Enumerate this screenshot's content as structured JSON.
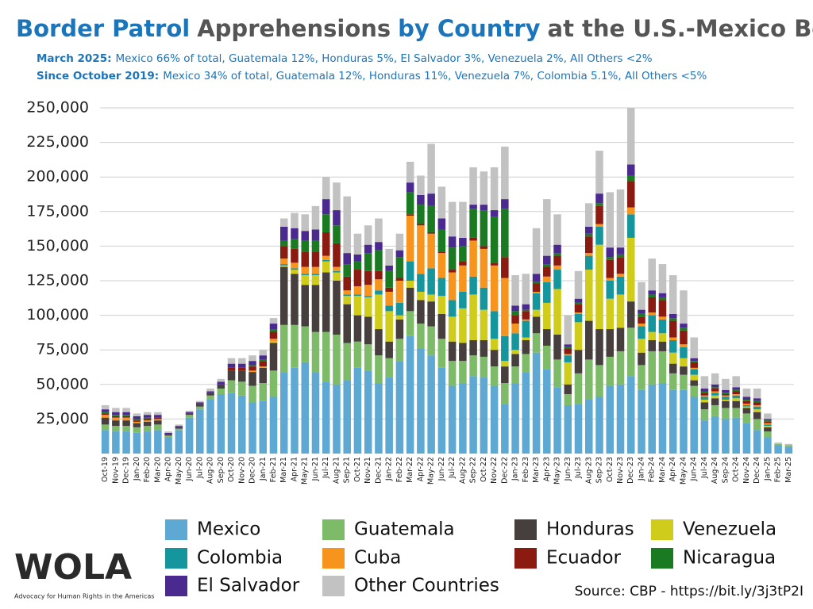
{
  "chart_data": {
    "type": "stacked_bar",
    "title_parts": [
      {
        "text": "Border Patrol",
        "color": "#1b75bb"
      },
      {
        "text": "Apprehensions",
        "color": "#555555"
      },
      {
        "text": "by Country",
        "color": "#1b75bb"
      },
      {
        "text": "at the U.S.-Mexico Border",
        "color": "#555555"
      }
    ],
    "subtitle": [
      {
        "label": "March 2025:",
        "text": "Mexico 66% of total, Guatemala 12%, Honduras 5%, El Salvador 3%, Venezuela 2%, All Others <2%"
      },
      {
        "label": "Since October 2019:",
        "text": "Mexico 34% of total, Guatemala 12%, Honduras 11%, Venezuela 7%, Colombia 5.1%, All Others <5%"
      }
    ],
    "categories": [
      "Oct-19",
      "Nov-19",
      "Dec-19",
      "Jan-20",
      "Feb-20",
      "Mar-20",
      "Apr-20",
      "May-20",
      "Jun-20",
      "Jul-20",
      "Aug-20",
      "Sep-20",
      "Oct-20",
      "Nov-20",
      "Dec-20",
      "Jan-21",
      "Feb-21",
      "Mar-21",
      "Apr-21",
      "May-21",
      "Jun-21",
      "Jul-21",
      "Aug-21",
      "Sep-21",
      "Oct-21",
      "Nov-21",
      "Dec-21",
      "Jan-22",
      "Feb-22",
      "Mar-22",
      "Apr-22",
      "May-22",
      "Jun-22",
      "Jul-22",
      "Aug-22",
      "Sep-22",
      "Oct-22",
      "Nov-22",
      "Dec-22",
      "Jan-23",
      "Feb-23",
      "Mar-23",
      "Apr-23",
      "May-23",
      "Jun-23",
      "Jul-23",
      "Aug-23",
      "Sep-23",
      "Oct-23",
      "Nov-23",
      "Dec-23",
      "Jan-24",
      "Feb-24",
      "Mar-24",
      "Apr-24",
      "May-24",
      "Jun-24",
      "Jul-24",
      "Aug-24",
      "Sep-24",
      "Oct-24",
      "Nov-24",
      "Dec-24",
      "Jan-25",
      "Feb-25",
      "Mar-25"
    ],
    "series": [
      {
        "name": "Mexico",
        "color": "#5ea9d3",
        "values": [
          17000,
          16000,
          16000,
          15000,
          16000,
          17000,
          12000,
          17000,
          26000,
          32000,
          39000,
          43000,
          44000,
          42000,
          37000,
          38000,
          41000,
          59000,
          62000,
          66000,
          59000,
          52000,
          50000,
          53000,
          62000,
          60000,
          51000,
          55000,
          67000,
          85000,
          76000,
          71000,
          62000,
          49000,
          51000,
          56000,
          55000,
          49000,
          36000,
          51000,
          59000,
          73000,
          61000,
          48000,
          35000,
          36000,
          39000,
          41000,
          49000,
          50000,
          56000,
          46000,
          50000,
          51000,
          46000,
          46000,
          41000,
          24000,
          27000,
          25000,
          26000,
          22000,
          17000,
          12000,
          6000,
          5000
        ]
      },
      {
        "name": "Guatemala",
        "color": "#7dbb69",
        "values": [
          4000,
          4000,
          4000,
          4000,
          4000,
          4000,
          1000,
          1000,
          2000,
          2000,
          3000,
          4000,
          9000,
          10000,
          12000,
          13000,
          19000,
          34000,
          31000,
          26000,
          29000,
          36000,
          36000,
          27000,
          19000,
          19000,
          20000,
          14000,
          16000,
          18000,
          18000,
          21000,
          21000,
          18000,
          16000,
          15000,
          15000,
          14000,
          15000,
          12000,
          13000,
          14000,
          17000,
          20000,
          8000,
          22000,
          29000,
          23000,
          21000,
          24000,
          35000,
          18000,
          24000,
          23000,
          12000,
          11000,
          8000,
          8000,
          8000,
          8000,
          7000,
          7000,
          8000,
          4000,
          1000,
          1000
        ]
      },
      {
        "name": "Honduras",
        "color": "#463f3e",
        "values": [
          5000,
          4000,
          4000,
          3000,
          3000,
          3000,
          1000,
          1000,
          1000,
          2000,
          2000,
          3000,
          7000,
          8000,
          10000,
          11000,
          20000,
          42000,
          37000,
          30000,
          34000,
          43000,
          39000,
          28000,
          19000,
          20000,
          19000,
          12000,
          14000,
          17000,
          17000,
          18000,
          18000,
          14000,
          13000,
          11000,
          12000,
          12000,
          12000,
          9000,
          10000,
          12000,
          12000,
          18000,
          7000,
          17000,
          28000,
          26000,
          20000,
          17000,
          19000,
          9000,
          8000,
          7000,
          7000,
          6000,
          4000,
          5000,
          5000,
          5000,
          5000,
          4000,
          5000,
          3000,
          0,
          0
        ]
      },
      {
        "name": "Venezuela",
        "color": "#cfcc1c",
        "values": [
          0,
          0,
          0,
          0,
          0,
          0,
          0,
          0,
          0,
          0,
          0,
          0,
          0,
          0,
          0,
          0,
          1000,
          1000,
          3000,
          7000,
          7000,
          8000,
          6000,
          6000,
          14000,
          14000,
          25000,
          22000,
          3000,
          5000,
          6000,
          5000,
          13000,
          18000,
          25000,
          33000,
          22000,
          8000,
          4000,
          3000,
          2000,
          5000,
          19000,
          33000,
          16000,
          20000,
          37000,
          61000,
          22000,
          24000,
          46000,
          10000,
          6000,
          6000,
          8000,
          6000,
          4000,
          2000,
          2000,
          1000,
          2000,
          1000,
          2000,
          1000,
          0,
          0
        ]
      },
      {
        "name": "Colombia",
        "color": "#15959c",
        "values": [
          0,
          0,
          0,
          0,
          0,
          0,
          0,
          0,
          0,
          0,
          0,
          0,
          0,
          0,
          0,
          0,
          0,
          1000,
          1000,
          1000,
          1000,
          1000,
          1000,
          1000,
          1000,
          1000,
          3000,
          4000,
          9000,
          14000,
          13000,
          19000,
          13000,
          12000,
          12000,
          13000,
          16000,
          20000,
          18000,
          12000,
          12000,
          12000,
          15000,
          14000,
          5000,
          6000,
          10000,
          13000,
          13000,
          13000,
          17000,
          9000,
          12000,
          10000,
          9000,
          8000,
          4000,
          2000,
          2000,
          2000,
          2000,
          1000,
          2000,
          1000,
          0,
          0
        ]
      },
      {
        "name": "Cuba",
        "color": "#f7941d",
        "values": [
          2000,
          2000,
          2000,
          1000,
          1000,
          1000,
          0,
          0,
          0,
          0,
          0,
          0,
          0,
          0,
          1000,
          1000,
          2000,
          4000,
          4000,
          5000,
          5000,
          3000,
          3000,
          3000,
          6000,
          8000,
          8000,
          10000,
          16000,
          33000,
          35000,
          25000,
          18000,
          20000,
          19000,
          26000,
          28000,
          33000,
          42000,
          7000,
          1000,
          1000,
          4000,
          3000,
          1000,
          1000,
          2000,
          2000,
          2000,
          2000,
          5000,
          2000,
          2000,
          2000,
          2000,
          2000,
          1000,
          1000,
          1000,
          1000,
          1000,
          1000,
          1000,
          1000,
          0,
          0
        ]
      },
      {
        "name": "Ecuador",
        "color": "#8b1a10",
        "values": [
          1000,
          1000,
          1000,
          1000,
          1000,
          1000,
          0,
          0,
          0,
          0,
          0,
          0,
          2000,
          2000,
          3000,
          4000,
          5000,
          9000,
          10000,
          11000,
          11000,
          17000,
          17000,
          10000,
          12000,
          10000,
          6000,
          3000,
          2000,
          1000,
          1000,
          1000,
          1000,
          2000,
          3000,
          2000,
          2000,
          2000,
          15000,
          6000,
          6000,
          6000,
          7000,
          7000,
          4000,
          6000,
          12000,
          13000,
          13000,
          12000,
          19000,
          5000,
          11000,
          12000,
          12000,
          10000,
          4000,
          2000,
          2000,
          1000,
          2000,
          2000,
          2000,
          1000,
          0,
          0
        ]
      },
      {
        "name": "Nicaragua",
        "color": "#1a7a22",
        "values": [
          1000,
          1000,
          1000,
          1000,
          1000,
          0,
          0,
          0,
          0,
          0,
          0,
          0,
          0,
          0,
          1000,
          1000,
          2000,
          4000,
          7000,
          8000,
          8000,
          13000,
          13000,
          9000,
          6000,
          13000,
          15000,
          12000,
          15000,
          16000,
          14000,
          19000,
          16000,
          16000,
          11000,
          21000,
          26000,
          33000,
          35000,
          3000,
          1000,
          1000,
          2000,
          2000,
          1000,
          1000,
          2000,
          2000,
          2000,
          2000,
          4000,
          2000,
          2000,
          2000,
          2000,
          2000,
          1000,
          1000,
          1000,
          1000,
          1000,
          1000,
          1000,
          1000,
          0,
          0
        ]
      },
      {
        "name": "El Salvador",
        "color": "#4b2a8f",
        "values": [
          2000,
          2000,
          2000,
          2000,
          2000,
          2000,
          1000,
          1000,
          1000,
          1000,
          1000,
          2000,
          3000,
          3000,
          3000,
          3000,
          4000,
          10000,
          8000,
          7000,
          8000,
          11000,
          11000,
          8000,
          5000,
          6000,
          6000,
          4000,
          5000,
          7000,
          7000,
          9000,
          8000,
          8000,
          6000,
          3000,
          4000,
          5000,
          7000,
          4000,
          4000,
          6000,
          6000,
          6000,
          2000,
          3000,
          5000,
          7000,
          7000,
          5000,
          8000,
          3000,
          3000,
          3000,
          3000,
          3000,
          2000,
          2000,
          2000,
          2000,
          2000,
          2000,
          2000,
          1000,
          0,
          0
        ]
      },
      {
        "name": "Other Countries",
        "color": "#c2c2c2",
        "values": [
          3000,
          3000,
          3000,
          2000,
          2000,
          2000,
          1000,
          1000,
          1000,
          1000,
          2000,
          2000,
          4000,
          4000,
          4000,
          4000,
          4000,
          6000,
          11000,
          12000,
          17000,
          16000,
          20000,
          41000,
          15000,
          14000,
          17000,
          12000,
          12000,
          15000,
          14000,
          36000,
          23000,
          25000,
          26000,
          27000,
          24000,
          31000,
          38000,
          22000,
          22000,
          33000,
          41000,
          22000,
          21000,
          20000,
          17000,
          31000,
          40000,
          42000,
          41000,
          20000,
          23000,
          21000,
          28000,
          24000,
          15000,
          9000,
          8000,
          8000,
          8000,
          6000,
          7000,
          4000,
          1000,
          1000
        ]
      }
    ],
    "ylim": [
      0,
      250000
    ],
    "yticks": [
      {
        "value": 25000,
        "label": "25,000"
      },
      {
        "value": 50000,
        "label": "50,000"
      },
      {
        "value": 75000,
        "label": "75,000"
      },
      {
        "value": 100000,
        "label": "100,000"
      },
      {
        "value": 125000,
        "label": "125,000"
      },
      {
        "value": 150000,
        "label": "150,000"
      },
      {
        "value": 175000,
        "label": "175,000"
      },
      {
        "value": 200000,
        "label": "200,000"
      },
      {
        "value": 225000,
        "label": "225,000"
      },
      {
        "value": 250000,
        "label": "250,000"
      }
    ],
    "grid": true,
    "source": "Source: CBP - https://bit.ly/3j3tP2I",
    "logo": {
      "name": "WOLA",
      "tagline": "Advocacy for Human Rights in the Americas"
    }
  }
}
